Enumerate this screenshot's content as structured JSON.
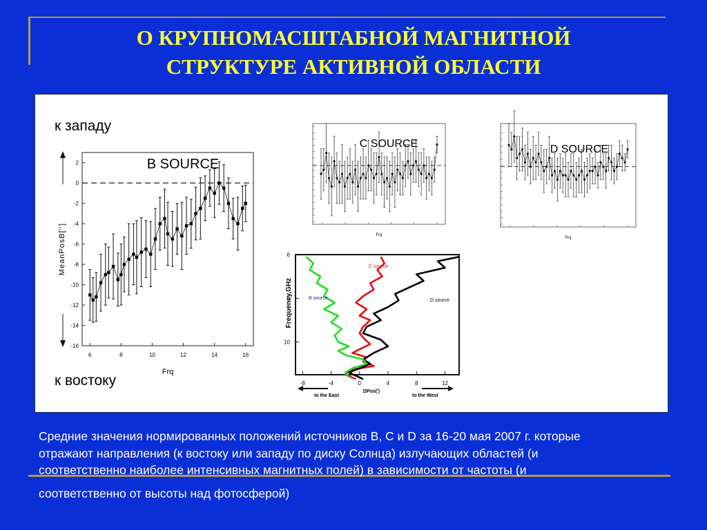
{
  "title_line1": "О КРУПНОМАСШТАБНОЙ МАГНИТНОЙ",
  "title_line2": "СТРУКТУРЕ АКТИВНОЙ ОБЛАСТИ",
  "labels": {
    "west": "к западу",
    "east": "к востоку"
  },
  "caption": {
    "line1": " Средние значения нормированных положений источников B, C и D за 16-20 мая 2007 г. которые",
    "line2": "отражают направления (к востоку или западу по диску Солнца) излучающих областей (и",
    "line3": "соответственно наиболее интенсивных магнитных полей) в зависимости от частоты (и",
    "line4": "соответственно от высоты над фотосферой)"
  },
  "colors": {
    "background": "#0a2fd6",
    "title": "#ffff33",
    "gold_rule": "#b59a4a",
    "c_source": "#e01010",
    "d_source": "#000000",
    "b_source": "#22dd22",
    "b_source_label": "#1a1aa0"
  },
  "chart_data": [
    {
      "type": "scatter",
      "title": "B SOURCE",
      "xlabel": "Frq",
      "ylabel": "MeanPosB['']",
      "xlim": [
        5.5,
        16.5
      ],
      "ylim": [
        -16,
        3
      ],
      "xticks": [
        "6",
        "8",
        "10",
        "12",
        "14",
        "16"
      ],
      "yticks": [
        "2",
        "0",
        "-2",
        "-4",
        "-6",
        "-8",
        "-10",
        "-12",
        "-14",
        "-16"
      ],
      "reference_line": 0,
      "x": [
        6.0,
        6.2,
        6.4,
        6.7,
        7.0,
        7.2,
        7.5,
        7.8,
        8.0,
        8.2,
        8.5,
        8.8,
        9.0,
        9.3,
        9.6,
        9.9,
        10.2,
        10.5,
        10.8,
        11.0,
        11.3,
        11.6,
        11.9,
        12.2,
        12.5,
        12.8,
        13.1,
        13.4,
        13.7,
        14.0,
        14.3,
        14.6,
        14.9,
        15.2,
        15.5,
        15.8,
        16.0
      ],
      "y": [
        -11,
        -11.5,
        -11.2,
        -9.8,
        -9.0,
        -8.8,
        -8.2,
        -9.5,
        -9.0,
        -8.0,
        -7.5,
        -7.0,
        -7.3,
        -6.8,
        -6.5,
        -7.0,
        -5.5,
        -4.0,
        -3.5,
        -5.0,
        -5.5,
        -4.5,
        -5.2,
        -4.2,
        -4.0,
        -3.0,
        -2.5,
        -1.5,
        -0.5,
        -1.0,
        0.0,
        -0.5,
        -2.0,
        -3.5,
        -4.0,
        -2.5,
        -2.0
      ],
      "errors": [
        2.5,
        2.2,
        2.4,
        2.8,
        3.0,
        2.5,
        3.2,
        2.6,
        3.0,
        2.7,
        3.5,
        3.0,
        3.6,
        3.4,
        2.8,
        3.2,
        3.0,
        2.6,
        2.9,
        3.1,
        2.7,
        2.5,
        3.3,
        2.8,
        2.4,
        2.6,
        3.0,
        2.2,
        1.8,
        2.4,
        2.1,
        2.3,
        2.5,
        2.0,
        2.6,
        2.2,
        1.8
      ]
    },
    {
      "type": "scatter",
      "title": "C SOURCE",
      "xlabel": "Frq",
      "xlim": [
        5.5,
        16.5
      ],
      "ylim": [
        -14,
        10
      ],
      "reference_line": 0,
      "y": [
        -2,
        -1,
        3,
        -3,
        -5,
        1,
        -3,
        -4,
        -2,
        -5,
        -3,
        -2,
        -4,
        -1,
        -5,
        -3,
        -2,
        -3,
        0,
        -1,
        -3,
        -2,
        2,
        -2,
        -4,
        -3,
        -5,
        -2,
        -4,
        -1,
        -2,
        -3,
        0,
        1,
        -2,
        0,
        1,
        -1,
        -2,
        0,
        -3,
        -2,
        -3,
        -1,
        5
      ],
      "errors": [
        6,
        5,
        7,
        6,
        7,
        6,
        6,
        5,
        7,
        6,
        5,
        6,
        5,
        6,
        6,
        5,
        6,
        5,
        6,
        5,
        6,
        5,
        6,
        5,
        6,
        5,
        6,
        5,
        6,
        5,
        5,
        4,
        5,
        4,
        5,
        4,
        5,
        4,
        5,
        4,
        5,
        4,
        4,
        3,
        2
      ]
    },
    {
      "type": "scatter",
      "title": "D SOURCE",
      "xlabel": "Frq",
      "xlim": [
        5.5,
        16.5
      ],
      "ylim": [
        -14,
        10
      ],
      "reference_line": 0,
      "y": [
        5,
        4,
        7,
        2,
        3,
        4,
        1,
        3,
        0,
        2,
        1,
        3,
        1,
        -1,
        0,
        2,
        -2,
        -1,
        -3,
        -1,
        -2,
        -2,
        -3,
        -1,
        -2,
        -3,
        -2,
        -1,
        -3,
        -2,
        -1,
        -1,
        0,
        -2,
        1,
        0,
        -1,
        2,
        1,
        -1,
        0,
        3,
        2,
        1,
        4
      ],
      "errors": [
        5,
        4,
        6,
        5,
        4,
        5,
        4,
        5,
        4,
        5,
        4,
        5,
        4,
        5,
        4,
        5,
        4,
        4,
        5,
        4,
        4,
        5,
        4,
        4,
        5,
        4,
        4,
        5,
        4,
        4,
        4,
        3,
        4,
        3,
        4,
        3,
        4,
        3,
        4,
        3,
        3,
        3,
        3,
        2,
        2
      ]
    },
    {
      "type": "line",
      "ylabel": "Frequency,GHz",
      "xlabel": "DPos(')",
      "xlim": [
        -9,
        14
      ],
      "ylim": [
        6,
        11.5
      ],
      "xticks": [
        "-8",
        "-4",
        "0",
        "4",
        "8",
        "12"
      ],
      "yticks": [
        "6",
        "8",
        "10"
      ],
      "annotations": [
        "to the East",
        "to the West"
      ],
      "series": [
        {
          "name": "C source",
          "x": [
            3.0,
            3.5,
            2.5,
            3.2,
            1.5,
            2.0,
            0.5,
            -0.5,
            1.0,
            0.0,
            1.5,
            0.5,
            0.0,
            0.8,
            1.5,
            0.2,
            -1.0,
            1.0,
            0.5,
            2.0,
            -1.5,
            -2.0,
            -0.5
          ],
          "y": [
            6.1,
            6.4,
            6.7,
            7.0,
            7.3,
            7.6,
            7.9,
            8.2,
            8.5,
            8.8,
            9.0,
            9.3,
            9.6,
            9.9,
            10.1,
            10.3,
            10.5,
            10.7,
            10.9,
            11.1,
            11.3,
            11.5,
            11.7
          ]
        },
        {
          "name": "D source",
          "x": [
            14,
            11,
            12,
            8,
            9,
            7,
            5,
            5.5,
            4,
            2,
            3,
            1,
            0.5,
            3.0,
            4.0,
            2.0,
            0.5,
            1.5,
            0.0,
            -1.5,
            0.5
          ],
          "y": [
            6.1,
            6.3,
            6.6,
            6.9,
            7.2,
            7.5,
            7.8,
            8.1,
            8.4,
            8.7,
            9.0,
            9.3,
            9.6,
            9.9,
            10.2,
            10.5,
            10.8,
            11.0,
            11.2,
            11.4,
            11.7
          ]
        },
        {
          "name": "B source",
          "x": [
            -7.5,
            -6.5,
            -7.0,
            -5.5,
            -6.0,
            -4.5,
            -5.0,
            -3.5,
            -5.0,
            -3.0,
            -4.0,
            -2.5,
            -3.5,
            -3.0,
            -1.5,
            -3.0,
            -2.0,
            0.5,
            1.0,
            -1.0,
            -2.0,
            -1.5
          ],
          "y": [
            6.1,
            6.4,
            6.7,
            7.0,
            7.3,
            7.6,
            7.9,
            8.2,
            8.5,
            8.8,
            9.1,
            9.4,
            9.7,
            10.0,
            10.2,
            10.4,
            10.6,
            10.8,
            11.0,
            11.2,
            11.4,
            11.6
          ]
        }
      ]
    }
  ]
}
